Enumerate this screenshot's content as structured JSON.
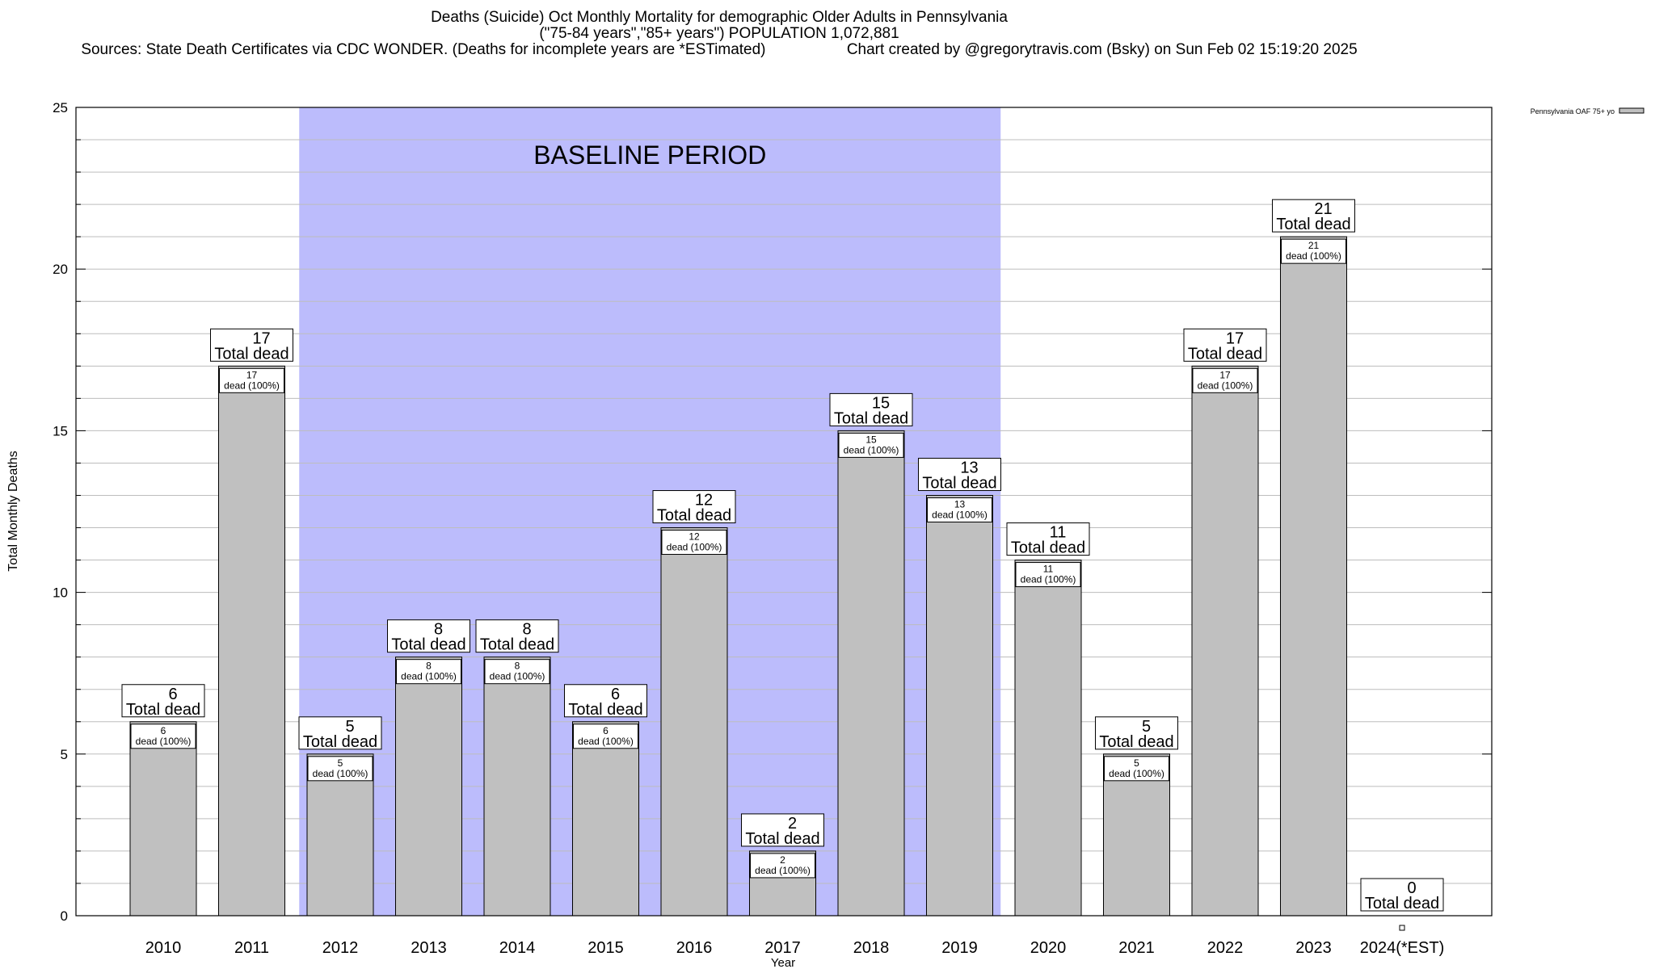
{
  "header": {
    "title": "Deaths (Suicide) Oct Monthly Mortality for demographic Older Adults in Pennsylvania",
    "subtitle": "(\"75-84 years\",\"85+ years\") POPULATION 1,072,881",
    "sources": "Sources: State Death Certificates via CDC WONDER. (Deaths for incomplete years are *ESTimated)",
    "credit": "Chart created by @gregorytravis.com (Bsky) on Sun Feb 02 15:19:20 2025"
  },
  "chart_data": {
    "type": "bar",
    "xlabel": "Year",
    "ylabel": "Total Monthly Deaths",
    "ylim": [
      0,
      25
    ],
    "yticks": [
      0,
      5,
      10,
      15,
      20,
      25
    ],
    "grid": true,
    "legend": {
      "placement": "top-right",
      "label": "Pennsylvania OAF 75+ yo"
    },
    "baseline": {
      "label": "BASELINE PERIOD",
      "from": "2012",
      "to": "2019",
      "color": "#bcbcfc"
    },
    "bar_color": "#c0c0c0",
    "categories": [
      "2010",
      "2011",
      "2012",
      "2013",
      "2014",
      "2015",
      "2016",
      "2017",
      "2018",
      "2019",
      "2020",
      "2021",
      "2022",
      "2023",
      "2024(*EST)"
    ],
    "series": [
      {
        "values": [
          6,
          17,
          5,
          8,
          8,
          6,
          12,
          2,
          15,
          13,
          11,
          5,
          17,
          21,
          0
        ]
      }
    ],
    "total_label": "Total dead",
    "segment_label": "dead (100%)"
  }
}
